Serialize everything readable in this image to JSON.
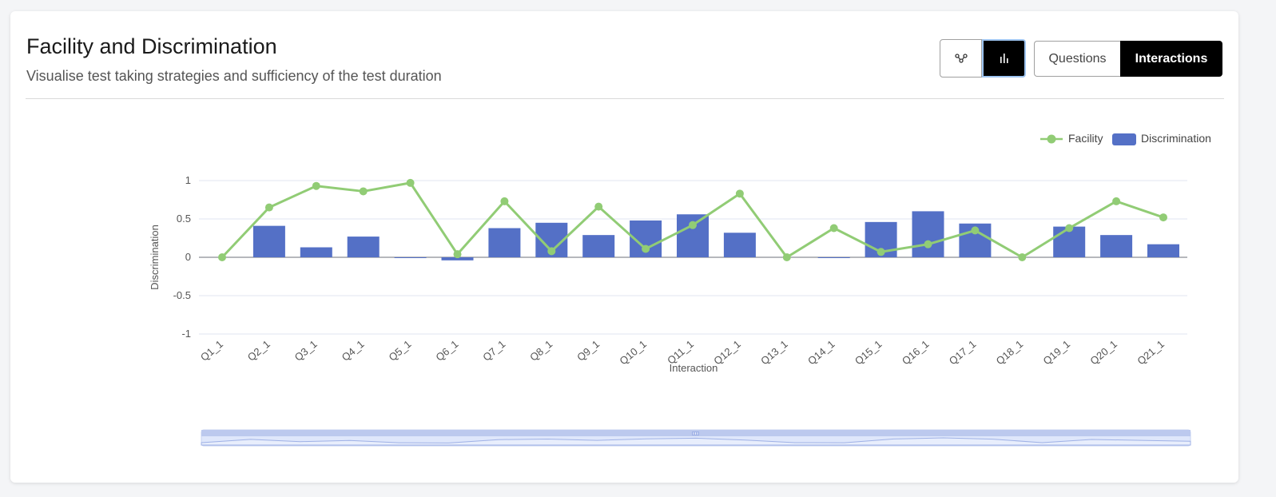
{
  "header": {
    "title": "Facility and Discrimination",
    "subtitle": "Visualise test taking strategies and sufficiency of the test duration"
  },
  "toolbar": {
    "scatter_icon": "scatter-chart-icon",
    "bar_icon": "bar-chart-icon",
    "questions_label": "Questions",
    "interactions_label": "Interactions",
    "active_view": "Interactions"
  },
  "colors": {
    "facility": "#91cc75",
    "discrimination": "#5470c6"
  },
  "chart_data": {
    "type": "bar",
    "xlabel": "Interaction",
    "ylabel": "Discrimination",
    "ylim": [
      -1,
      1
    ],
    "yticks": [
      "1",
      "0.5",
      "0",
      "-0.5",
      "-1"
    ],
    "legend_position": "top-right",
    "grid": true,
    "categories": [
      "Q1_1",
      "Q2_1",
      "Q3_1",
      "Q4_1",
      "Q5_1",
      "Q6_1",
      "Q7_1",
      "Q8_1",
      "Q9_1",
      "Q10_1",
      "Q11_1",
      "Q12_1",
      "Q13_1",
      "Q14_1",
      "Q15_1",
      "Q16_1",
      "Q17_1",
      "Q18_1",
      "Q19_1",
      "Q20_1",
      "Q21_1"
    ],
    "series": [
      {
        "name": "Facility",
        "type": "line",
        "values": [
          0,
          0.65,
          0.93,
          0.86,
          0.97,
          0.04,
          0.73,
          0.08,
          0.66,
          0.11,
          0.42,
          0.83,
          0,
          0.38,
          0.07,
          0.17,
          0.35,
          0,
          0.38,
          0.73,
          0.52
        ]
      },
      {
        "name": "Discrimination",
        "type": "bar",
        "values": [
          0,
          0.41,
          0.13,
          0.27,
          -0.01,
          -0.04,
          0.38,
          0.45,
          0.29,
          0.48,
          0.56,
          0.32,
          0,
          -0.01,
          0.46,
          0.6,
          0.44,
          0,
          0.4,
          0.29,
          0.17
        ]
      }
    ]
  }
}
